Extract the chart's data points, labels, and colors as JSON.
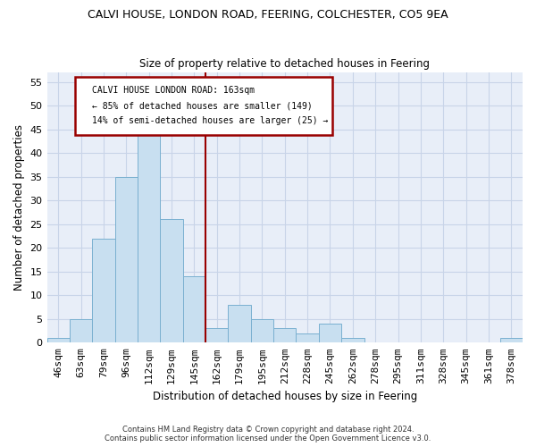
{
  "title": "CALVI HOUSE, LONDON ROAD, FEERING, COLCHESTER, CO5 9EA",
  "subtitle": "Size of property relative to detached houses in Feering",
  "xlabel": "Distribution of detached houses by size in Feering",
  "ylabel": "Number of detached properties",
  "footer_line1": "Contains HM Land Registry data © Crown copyright and database right 2024.",
  "footer_line2": "Contains public sector information licensed under the Open Government Licence v3.0.",
  "bin_labels": [
    "46sqm",
    "63sqm",
    "79sqm",
    "96sqm",
    "112sqm",
    "129sqm",
    "145sqm",
    "162sqm",
    "179sqm",
    "195sqm",
    "212sqm",
    "228sqm",
    "245sqm",
    "262sqm",
    "278sqm",
    "295sqm",
    "311sqm",
    "328sqm",
    "345sqm",
    "361sqm",
    "378sqm"
  ],
  "bar_heights": [
    1,
    5,
    22,
    35,
    45,
    26,
    14,
    3,
    8,
    5,
    3,
    2,
    4,
    1,
    0,
    0,
    0,
    0,
    0,
    0,
    1
  ],
  "bar_color": "#c8dff0",
  "bar_edge_color": "#7ab0d0",
  "reference_line_color": "#990000",
  "ylim": [
    0,
    57
  ],
  "yticks": [
    0,
    5,
    10,
    15,
    20,
    25,
    30,
    35,
    40,
    45,
    50,
    55
  ],
  "annotation_title": "CALVI HOUSE LONDON ROAD: 163sqm",
  "annotation_line1": "← 85% of detached houses are smaller (149)",
  "annotation_line2": "14% of semi-detached houses are larger (25) →",
  "reference_line_index": 7,
  "grid_color": "#c8d4e8",
  "bg_color": "#e8eef8",
  "plot_bg_color": "#e8eef8",
  "title_fontsize": 9,
  "subtitle_fontsize": 8.5
}
